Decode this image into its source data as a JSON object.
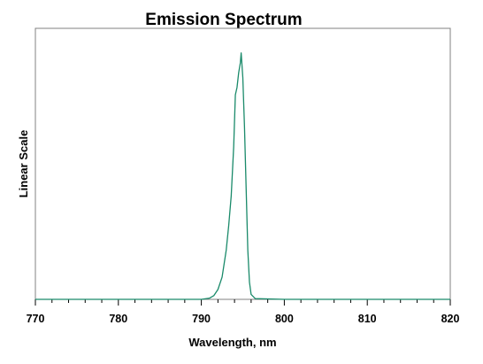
{
  "chart_data": {
    "type": "line",
    "title": "Emission Spectrum",
    "xlabel": "Wavelength, nm",
    "ylabel": "Linear Scale",
    "xlim": [
      770,
      820
    ],
    "ylim": [
      0,
      1.1
    ],
    "x_ticks": [
      770,
      780,
      790,
      800,
      810,
      820
    ],
    "x_minor_step": 2,
    "y_ticks_shown": false,
    "grid": false,
    "legend": "none",
    "series": [
      {
        "color": "#1a8a6a",
        "x": [
          770,
          775,
          780,
          785,
          790,
          791,
          791.5,
          792,
          792.5,
          793,
          793.3,
          793.6,
          793.9,
          794.1,
          794.3,
          794.5,
          794.7,
          794.8,
          795.0,
          795.2,
          795.4,
          795.6,
          795.8,
          796.0,
          796.5,
          800,
          805,
          810,
          815,
          820
        ],
        "y": [
          0,
          0,
          0,
          0,
          0,
          0.005,
          0.015,
          0.04,
          0.09,
          0.2,
          0.3,
          0.42,
          0.62,
          0.83,
          0.86,
          0.92,
          0.96,
          1.0,
          0.9,
          0.7,
          0.45,
          0.2,
          0.07,
          0.02,
          0.003,
          0,
          0,
          0,
          0,
          0
        ]
      }
    ]
  }
}
